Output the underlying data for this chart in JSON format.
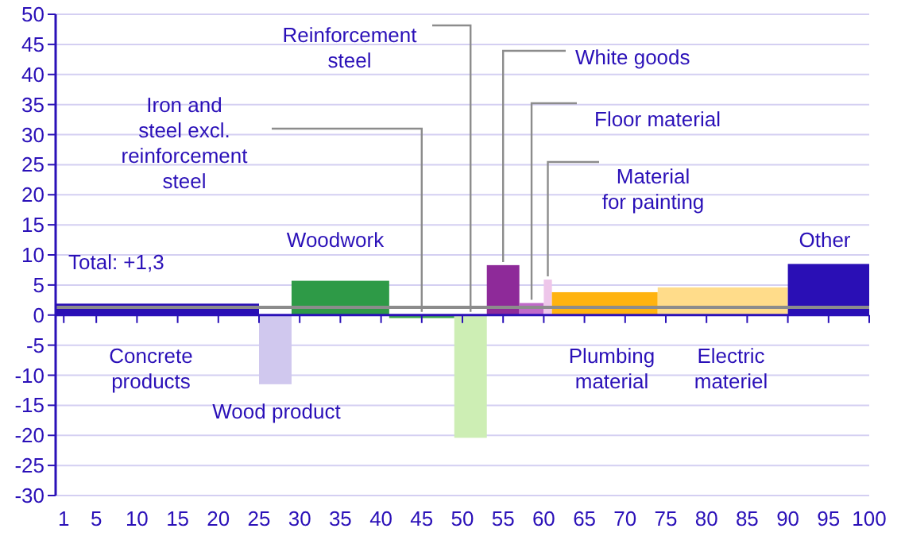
{
  "chart_data": {
    "type": "histogram",
    "bins": [
      0,
      25,
      29,
      41,
      49,
      53,
      57,
      60,
      61,
      74,
      90,
      100
    ],
    "values": [
      1.9,
      -11.5,
      5.7,
      -0.5,
      -20.4,
      8.3,
      2.0,
      5.9,
      3.8,
      4.6,
      8.5
    ],
    "colors": [
      "#2a0fb5",
      "#d0c8ee",
      "#2e9a47",
      "#3da84a",
      "#cdeeb4",
      "#8e2a99",
      "#c06ac9",
      "#eec6ea",
      "#ffb30f",
      "#ffdc8a",
      "#2a0fb5"
    ],
    "xlim": [
      0,
      100
    ],
    "xticks": [
      1,
      5,
      10,
      15,
      20,
      25,
      30,
      35,
      40,
      45,
      50,
      55,
      60,
      65,
      70,
      75,
      80,
      85,
      90,
      95,
      100
    ],
    "ylim": [
      -30,
      50
    ],
    "yticks": [
      -30,
      -25,
      -20,
      -15,
      -10,
      -5,
      0,
      5,
      10,
      15,
      20,
      25,
      30,
      35,
      40,
      45,
      50
    ],
    "grid": "y",
    "ref_lines": [
      {
        "axis": "y",
        "value": 1.3,
        "label": "Total: +1,3",
        "color": "#8c8c8c"
      },
      {
        "axis": "y",
        "value": 0,
        "color": "#2a10b8"
      }
    ],
    "annotations": [
      "Concrete\nproducts",
      "Wood product",
      "Woodwork",
      {
        "text": "Iron and\nsteel excl.\nreinforcement\nsteel",
        "x": 45,
        "y": 0
      },
      {
        "text": "Reinforcement\nsteel",
        "x": 51,
        "y": 0
      },
      {
        "text": "White goods",
        "x": 55,
        "y": 8.3
      },
      {
        "text": "Floor material",
        "x": 58.5,
        "y": 2.0
      },
      {
        "text": "Material\nfor painting",
        "x": 60.5,
        "y": 5.9
      },
      "Plumbing\nmaterial",
      "Electric\nmateriel",
      "Other"
    ]
  }
}
